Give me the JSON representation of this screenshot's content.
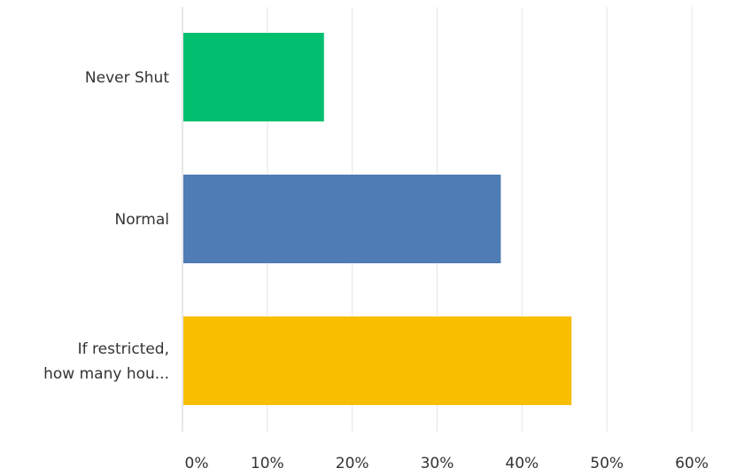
{
  "chart_data": {
    "type": "bar",
    "orientation": "horizontal",
    "categories": [
      {
        "lines": [
          "Never Shut"
        ]
      },
      {
        "lines": [
          "Normal"
        ]
      },
      {
        "lines": [
          "If restricted,",
          "how many hou..."
        ]
      }
    ],
    "values": [
      16.67,
      37.5,
      45.83
    ],
    "colors": [
      "#00bf6f",
      "#507cb6",
      "#f9be00"
    ],
    "xlim": [
      0,
      60
    ],
    "x_ticks": [
      {
        "value": 0,
        "label": "0%"
      },
      {
        "value": 10,
        "label": "10%"
      },
      {
        "value": 20,
        "label": "20%"
      },
      {
        "value": 30,
        "label": "30%"
      },
      {
        "value": 40,
        "label": "40%"
      },
      {
        "value": 50,
        "label": "50%"
      },
      {
        "value": 60,
        "label": "60%"
      }
    ],
    "grid": true,
    "title": "",
    "xlabel": "",
    "ylabel": "",
    "gridline_color": "#e6e6e6",
    "axis_color": "#d0d0d0"
  }
}
